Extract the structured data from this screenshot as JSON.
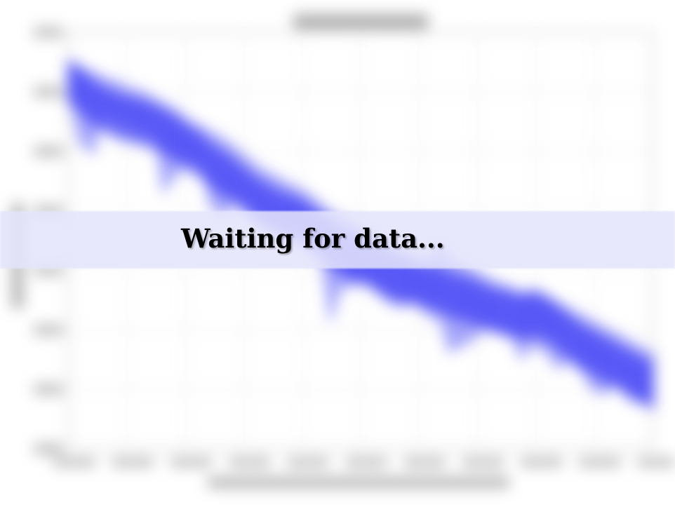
{
  "loading": {
    "message": "Waiting for data..."
  },
  "colors": {
    "series": "#3f3ff6",
    "banner": "#e4e4fc",
    "axes": "#cfcfcf"
  },
  "chart_data": {
    "type": "area",
    "grid": true,
    "series": [
      {
        "color": "#3f3ff6",
        "mean": [
          95,
          92,
          88,
          86,
          84,
          83,
          82,
          81,
          79,
          77,
          74,
          72,
          68,
          66,
          63,
          60,
          57,
          55,
          53,
          52,
          50,
          47,
          44,
          41,
          39,
          38,
          36,
          34,
          33,
          32,
          31,
          30,
          28,
          27,
          26,
          24,
          23,
          22,
          21,
          22,
          21,
          18,
          15,
          12,
          10,
          8,
          6,
          4,
          2,
          0
        ],
        "low": [
          88,
          75,
          72,
          84,
          82,
          81,
          79,
          78,
          60,
          65,
          70,
          68,
          55,
          52,
          58,
          56,
          50,
          48,
          47,
          46,
          44,
          40,
          20,
          30,
          31,
          33,
          28,
          25,
          24,
          26,
          22,
          20,
          10,
          12,
          14,
          18,
          17,
          15,
          8,
          12,
          10,
          5,
          7,
          4,
          -2,
          -3,
          0,
          -5,
          -6,
          -8
        ],
        "high": [
          100,
          99,
          98,
          96,
          95,
          93,
          92,
          90,
          88,
          86,
          83,
          81,
          79,
          77,
          74,
          71,
          68,
          66,
          64,
          62,
          60,
          57,
          54,
          52,
          50,
          48,
          46,
          44,
          42,
          40,
          38,
          45,
          40,
          38,
          36,
          34,
          32,
          31,
          29,
          30,
          28,
          26,
          24,
          22,
          20,
          18,
          16,
          14,
          12,
          10
        ]
      }
    ]
  }
}
